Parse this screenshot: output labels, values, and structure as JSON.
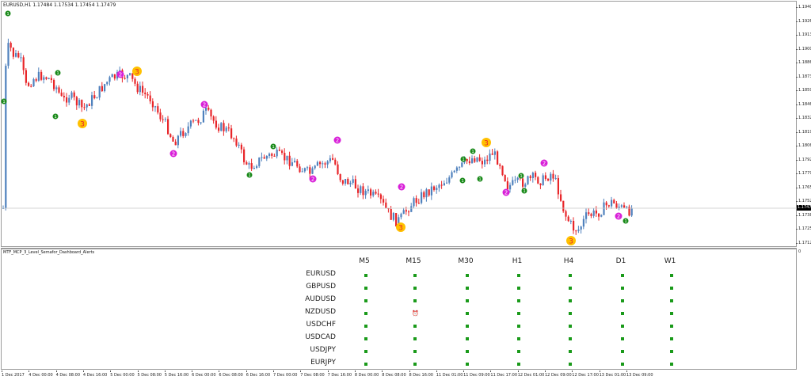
{
  "chart": {
    "title": "EURUSD,H1  1.17484 1.17534 1.17454 1.17479",
    "current_price": "1.17479",
    "price_axis": [
      "1.19400",
      "1.19265",
      "1.19130",
      "1.19000",
      "1.18865",
      "1.18730",
      "1.18595",
      "1.18460",
      "1.18325",
      "1.18195",
      "1.18060",
      "1.17925",
      "1.17790",
      "1.17655",
      "1.17520",
      "1.17385",
      "1.17255",
      "1.17120"
    ],
    "time_axis": [
      "1 Dec 2017",
      "4 Dec 00:00",
      "4 Dec 08:00",
      "4 Dec 16:00",
      "5 Dec 00:00",
      "5 Dec 08:00",
      "5 Dec 16:00",
      "6 Dec 00:00",
      "6 Dec 08:00",
      "6 Dec 16:00",
      "7 Dec 00:00",
      "7 Dec 08:00",
      "7 Dec 16:00",
      "8 Dec 00:00",
      "8 Dec 08:00",
      "8 Dec 16:00",
      "11 Dec 01:00",
      "11 Dec 09:00",
      "11 Dec 17:00",
      "12 Dec 01:00",
      "12 Dec 09:00",
      "12 Dec 17:00",
      "13 Dec 01:00",
      "13 Dec 09:00"
    ],
    "bull_color": "#4f81bd",
    "bear_color": "#e8262a",
    "semafor": [
      {
        "label": "3",
        "level": 3,
        "color": "#ffc000"
      },
      {
        "label": "2",
        "level": 2,
        "color": "#d81fd8"
      },
      {
        "label": "1",
        "level": 1,
        "color": "#1a8a1a"
      }
    ]
  },
  "indicator": {
    "title": "MTF_MCP_3_Level_Semafor_Dashboard_Alerts",
    "axis_zero": "0",
    "timeframes": [
      "M5",
      "M15",
      "M30",
      "H1",
      "H4",
      "D1",
      "W1"
    ],
    "symbols": [
      "EURUSD",
      "GBPUSD",
      "AUDUSD",
      "NZDUSD",
      "USDCHF",
      "USDCAD",
      "USDJPY",
      "EURJPY"
    ],
    "alert": {
      "symbol": "NZDUSD",
      "timeframe": "M15",
      "icon": "alarm-icon",
      "color": "#e0201a"
    },
    "dot_color": "#1a9a1a"
  }
}
